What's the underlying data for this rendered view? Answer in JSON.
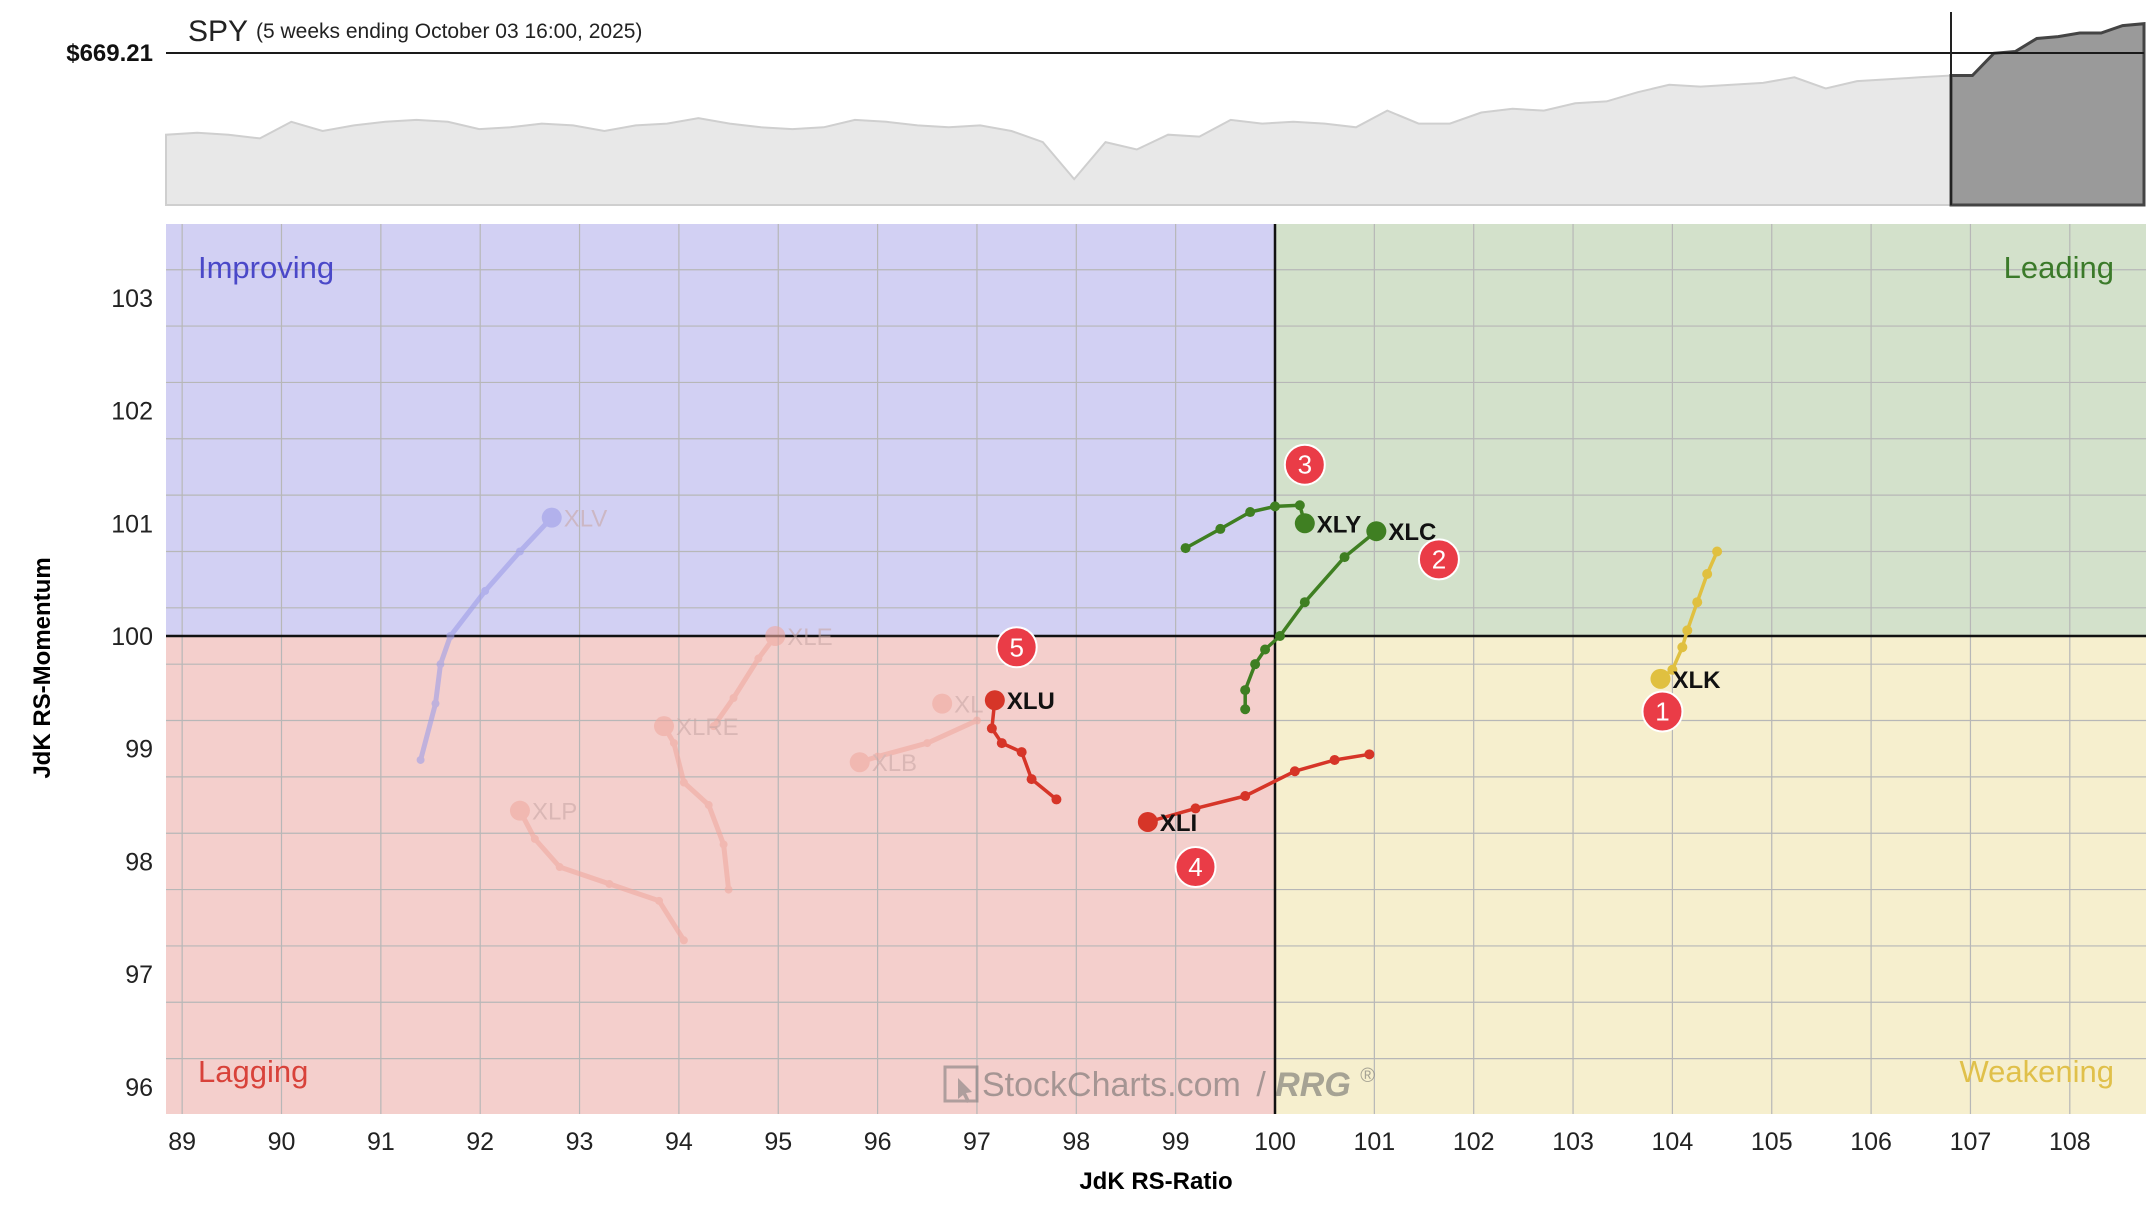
{
  "header": {
    "symbol": "SPY",
    "subtitle": "(5 weeks ending October 03 16:00, 2025)",
    "price_label": "$669.21"
  },
  "quadrants": {
    "improving": "Improving",
    "leading": "Leading",
    "lagging": "Lagging",
    "weakening": "Weakening"
  },
  "colors": {
    "improving_bg": "#d2d0f3",
    "leading_bg": "#d3e1cb",
    "lagging_bg": "#f4cfcc",
    "weakening_bg": "#f6efce",
    "improving_text": "#4a48c8",
    "leading_text": "#3b7a2a",
    "lagging_text": "#d8423a",
    "weakening_text": "#e0c04a",
    "green": "#3f7f22",
    "red": "#d63528",
    "yellow": "#e0c040",
    "badge": "#ea3c47"
  },
  "watermark": {
    "brand": "StockCharts.com",
    "separator": "/",
    "product": "RRG",
    "mark": "®"
  },
  "chart_data": [
    {
      "type": "area",
      "title": "SPY",
      "subtitle": "(5 weeks ending October 03 16:00, 2025)",
      "last_price": "$669.21",
      "values": [
        0.62,
        0.61,
        0.62,
        0.64,
        0.55,
        0.6,
        0.57,
        0.55,
        0.54,
        0.55,
        0.59,
        0.58,
        0.56,
        0.57,
        0.6,
        0.57,
        0.56,
        0.53,
        0.56,
        0.58,
        0.59,
        0.58,
        0.54,
        0.55,
        0.57,
        0.58,
        0.57,
        0.6,
        0.66,
        0.86,
        0.66,
        0.7,
        0.62,
        0.63,
        0.54,
        0.56,
        0.55,
        0.56,
        0.58,
        0.49,
        0.56,
        0.56,
        0.5,
        0.48,
        0.49,
        0.45,
        0.44,
        0.39,
        0.35,
        0.36,
        0.35,
        0.34,
        0.31,
        0.37,
        0.33,
        0.32,
        0.31,
        0.3
      ],
      "highlight_values": [
        0.3,
        0.3,
        0.18,
        0.17,
        0.1,
        0.09,
        0.07,
        0.07,
        0.03,
        0.02
      ]
    },
    {
      "type": "scatter",
      "xlabel": "JdK RS-Ratio",
      "ylabel": "JdK RS-Momentum",
      "xlim": [
        88.8,
        108.7
      ],
      "ylim": [
        95.75,
        103.6
      ],
      "center": [
        100,
        100
      ],
      "xticks": [
        89,
        90,
        91,
        92,
        93,
        94,
        95,
        96,
        97,
        98,
        99,
        100,
        101,
        102,
        103,
        104,
        105,
        106,
        107,
        108
      ],
      "yticks": [
        96,
        97,
        98,
        99,
        100,
        101,
        102,
        103
      ],
      "grid": true,
      "series": [
        {
          "name": "XLK",
          "color": "#e0c040",
          "faded": false,
          "points": [
            [
              104.45,
              100.75
            ],
            [
              104.35,
              100.55
            ],
            [
              104.25,
              100.3
            ],
            [
              104.15,
              100.05
            ],
            [
              104.1,
              99.9
            ],
            [
              104.0,
              99.7
            ],
            [
              103.88,
              99.62
            ]
          ]
        },
        {
          "name": "XLC",
          "color": "#3f7f22",
          "faded": false,
          "points": [
            [
              99.7,
              99.35
            ],
            [
              99.7,
              99.52
            ],
            [
              99.8,
              99.75
            ],
            [
              99.9,
              99.88
            ],
            [
              100.05,
              100.0
            ],
            [
              100.3,
              100.3
            ],
            [
              100.7,
              100.7
            ],
            [
              101.02,
              100.93
            ]
          ]
        },
        {
          "name": "XLY",
          "color": "#3f7f22",
          "faded": false,
          "points": [
            [
              99.1,
              100.78
            ],
            [
              99.45,
              100.95
            ],
            [
              99.75,
              101.1
            ],
            [
              100.0,
              101.15
            ],
            [
              100.25,
              101.16
            ],
            [
              100.3,
              101.0
            ]
          ]
        },
        {
          "name": "XLI",
          "color": "#d63528",
          "faded": false,
          "points": [
            [
              100.95,
              98.95
            ],
            [
              100.6,
              98.9
            ],
            [
              100.2,
              98.8
            ],
            [
              99.7,
              98.58
            ],
            [
              99.2,
              98.47
            ],
            [
              98.72,
              98.35
            ]
          ]
        },
        {
          "name": "XLU",
          "color": "#d63528",
          "faded": false,
          "points": [
            [
              97.8,
              98.55
            ],
            [
              97.55,
              98.73
            ],
            [
              97.45,
              98.97
            ],
            [
              97.25,
              99.05
            ],
            [
              97.15,
              99.18
            ],
            [
              97.18,
              99.43
            ]
          ]
        },
        {
          "name": "XLV",
          "color": "#9e9ee8",
          "faded": true,
          "points": [
            [
              91.4,
              98.9
            ],
            [
              91.55,
              99.4
            ],
            [
              91.6,
              99.75
            ],
            [
              91.7,
              100.0
            ],
            [
              92.05,
              100.4
            ],
            [
              92.4,
              100.75
            ],
            [
              92.72,
              101.05
            ]
          ]
        },
        {
          "name": "XLE",
          "color": "#f0a9a0",
          "faded": true,
          "points": [
            [
              94.35,
              99.2
            ],
            [
              94.55,
              99.45
            ],
            [
              94.8,
              99.8
            ],
            [
              94.97,
              100.0
            ]
          ]
        },
        {
          "name": "XLRE",
          "color": "#f0a9a0",
          "faded": true,
          "points": [
            [
              94.5,
              97.75
            ],
            [
              94.45,
              98.15
            ],
            [
              94.3,
              98.5
            ],
            [
              94.05,
              98.7
            ],
            [
              93.95,
              99.05
            ],
            [
              93.85,
              99.2
            ]
          ]
        },
        {
          "name": "XLP",
          "color": "#f0a9a0",
          "faded": true,
          "points": [
            [
              94.05,
              97.3
            ],
            [
              93.8,
              97.65
            ],
            [
              93.3,
              97.8
            ],
            [
              92.8,
              97.95
            ],
            [
              92.55,
              98.2
            ],
            [
              92.4,
              98.45
            ]
          ]
        },
        {
          "name": "XLB",
          "color": "#f0a9a0",
          "faded": true,
          "points": [
            [
              97.0,
              99.25
            ],
            [
              96.5,
              99.05
            ],
            [
              96.0,
              98.93
            ],
            [
              95.82,
              98.88
            ]
          ]
        },
        {
          "name": "XLF",
          "label": "XL",
          "color": "#f0a9a0",
          "faded": true,
          "points": [
            [
              96.65,
              99.4
            ]
          ]
        }
      ],
      "annotations": [
        {
          "label": "1",
          "x": 103.9,
          "y": 99.33
        },
        {
          "label": "2",
          "x": 101.65,
          "y": 100.68
        },
        {
          "label": "3",
          "x": 100.3,
          "y": 101.52
        },
        {
          "label": "4",
          "x": 99.2,
          "y": 97.95
        },
        {
          "label": "5",
          "x": 97.4,
          "y": 99.9
        }
      ]
    }
  ]
}
